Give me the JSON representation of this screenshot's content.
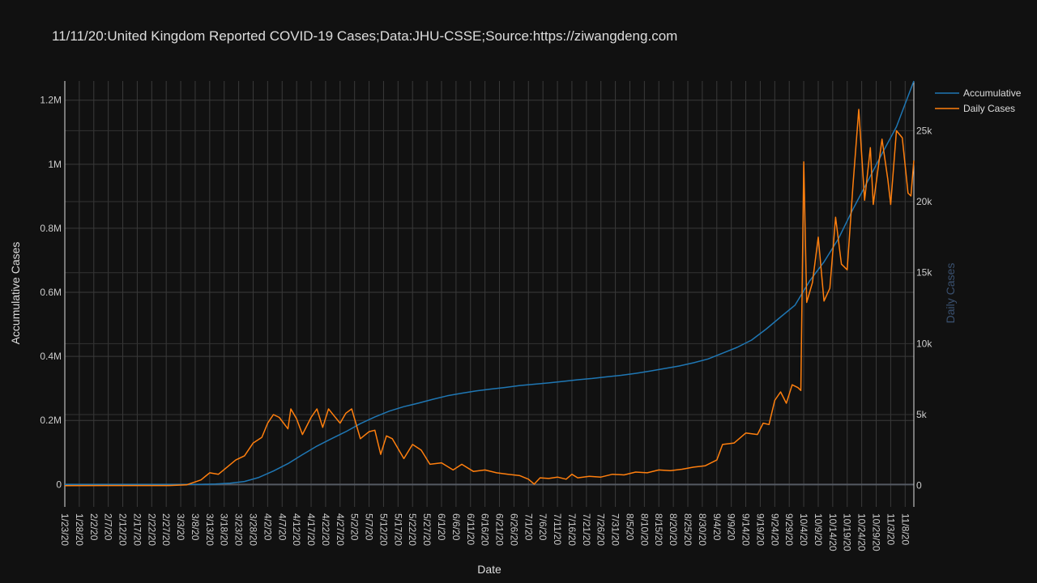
{
  "chart_data": {
    "type": "line",
    "title": "11/11/20:United Kingdom Reported COVID-19 Cases;Data:JHU-CSSE;Source:https://ziwangdeng.com",
    "xlabel": "Date",
    "ylabel_left": "Accumulative Cases",
    "ylabel_right": "Daily Cases",
    "x_range": [
      "1/23/20",
      "11/11/20"
    ],
    "x_tick_labels": [
      "1/23/20",
      "1/28/20",
      "2/2/20",
      "2/7/20",
      "2/12/20",
      "2/17/20",
      "2/22/20",
      "2/27/20",
      "3/3/20",
      "3/8/20",
      "3/13/20",
      "3/18/20",
      "3/23/20",
      "3/28/20",
      "4/2/20",
      "4/7/20",
      "4/12/20",
      "4/17/20",
      "4/22/20",
      "4/27/20",
      "5/2/20",
      "5/7/20",
      "5/12/20",
      "5/17/20",
      "5/22/20",
      "5/27/20",
      "6/1/20",
      "6/6/20",
      "6/11/20",
      "6/16/20",
      "6/21/20",
      "6/26/20",
      "7/1/20",
      "7/6/20",
      "7/11/20",
      "7/16/20",
      "7/21/20",
      "7/26/20",
      "7/31/20",
      "8/5/20",
      "8/10/20",
      "8/15/20",
      "8/20/20",
      "8/25/20",
      "8/30/20",
      "9/4/20",
      "9/9/20",
      "9/14/20",
      "9/19/20",
      "9/24/20",
      "9/29/20",
      "10/4/20",
      "10/9/20",
      "10/14/20",
      "10/19/20",
      "10/24/20",
      "10/29/20",
      "11/3/20",
      "11/8/20"
    ],
    "y_left": {
      "range": [
        -70000,
        1260000
      ],
      "tick_values": [
        0,
        200000,
        400000,
        600000,
        800000,
        1000000,
        1200000
      ],
      "tick_labels": [
        "0",
        "0.2M",
        "0.4M",
        "0.6M",
        "0.8M",
        "1M",
        "1.2M"
      ]
    },
    "y_right": {
      "range": [
        -1500,
        28500
      ],
      "tick_values": [
        0,
        5000,
        10000,
        15000,
        20000,
        25000
      ],
      "tick_labels": [
        "0",
        "5k",
        "10k",
        "15k",
        "20k",
        "25k"
      ]
    },
    "grid": true,
    "legend": "top-right",
    "series": [
      {
        "name": "Accumulative",
        "axis": "left",
        "color": "#1f77b4",
        "points": [
          [
            "1/23/20",
            0
          ],
          [
            "3/1/20",
            40
          ],
          [
            "3/10/20",
            400
          ],
          [
            "3/15/20",
            1400
          ],
          [
            "3/20/20",
            4000
          ],
          [
            "3/25/20",
            9500
          ],
          [
            "3/30/20",
            22000
          ],
          [
            "4/4/20",
            42000
          ],
          [
            "4/9/20",
            65000
          ],
          [
            "4/14/20",
            93000
          ],
          [
            "4/19/20",
            120000
          ],
          [
            "4/24/20",
            143000
          ],
          [
            "4/29/20",
            165000
          ],
          [
            "5/4/20",
            190000
          ],
          [
            "5/9/20",
            211000
          ],
          [
            "5/14/20",
            229000
          ],
          [
            "5/19/20",
            243000
          ],
          [
            "5/24/20",
            254000
          ],
          [
            "5/29/20",
            266000
          ],
          [
            "6/3/20",
            277000
          ],
          [
            "6/8/20",
            285000
          ],
          [
            "6/13/20",
            292000
          ],
          [
            "6/18/20",
            298000
          ],
          [
            "6/23/20",
            303000
          ],
          [
            "6/28/20",
            309000
          ],
          [
            "7/3/20",
            313000
          ],
          [
            "7/8/20",
            317000
          ],
          [
            "7/13/20",
            322000
          ],
          [
            "7/18/20",
            327000
          ],
          [
            "7/23/20",
            331000
          ],
          [
            "7/28/20",
            336000
          ],
          [
            "8/2/20",
            341000
          ],
          [
            "8/7/20",
            347000
          ],
          [
            "8/12/20",
            354000
          ],
          [
            "8/17/20",
            362000
          ],
          [
            "8/22/20",
            370000
          ],
          [
            "8/27/20",
            380000
          ],
          [
            "9/1/20",
            392000
          ],
          [
            "9/6/20",
            410000
          ],
          [
            "9/11/20",
            428000
          ],
          [
            "9/16/20",
            451000
          ],
          [
            "9/21/20",
            485000
          ],
          [
            "9/26/20",
            523000
          ],
          [
            "10/1/20",
            560000
          ],
          [
            "10/6/20",
            635000
          ],
          [
            "10/11/20",
            695000
          ],
          [
            "10/16/20",
            768000
          ],
          [
            "10/21/20",
            860000
          ],
          [
            "10/26/20",
            946000
          ],
          [
            "10/31/20",
            1033000
          ],
          [
            "11/5/20",
            1117000
          ],
          [
            "11/11/20",
            1260000
          ]
        ]
      },
      {
        "name": "Daily Cases",
        "axis": "right",
        "color": "#ff7f0e",
        "points": [
          [
            "1/23/20",
            0
          ],
          [
            "2/28/20",
            5
          ],
          [
            "3/5/20",
            50
          ],
          [
            "3/10/20",
            400
          ],
          [
            "3/13/20",
            900
          ],
          [
            "3/16/20",
            800
          ],
          [
            "3/19/20",
            1300
          ],
          [
            "3/22/20",
            1800
          ],
          [
            "3/25/20",
            2100
          ],
          [
            "3/28/20",
            3000
          ],
          [
            "3/31/20",
            3400
          ],
          [
            "4/2/20",
            4400
          ],
          [
            "4/4/20",
            5000
          ],
          [
            "4/6/20",
            4800
          ],
          [
            "4/9/20",
            4000
          ],
          [
            "4/10/20",
            5400
          ],
          [
            "4/12/20",
            4700
          ],
          [
            "4/14/20",
            3600
          ],
          [
            "4/17/20",
            4800
          ],
          [
            "4/19/20",
            5400
          ],
          [
            "4/21/20",
            4100
          ],
          [
            "4/23/20",
            5400
          ],
          [
            "4/25/20",
            4900
          ],
          [
            "4/27/20",
            4400
          ],
          [
            "4/29/20",
            5100
          ],
          [
            "5/1/20",
            5400
          ],
          [
            "5/4/20",
            3300
          ],
          [
            "5/7/20",
            3800
          ],
          [
            "5/9/20",
            3900
          ],
          [
            "5/11/20",
            2200
          ],
          [
            "5/13/20",
            3500
          ],
          [
            "5/15/20",
            3300
          ],
          [
            "5/19/20",
            1900
          ],
          [
            "5/22/20",
            2900
          ],
          [
            "5/25/20",
            2500
          ],
          [
            "5/28/20",
            1500
          ],
          [
            "6/1/20",
            1600
          ],
          [
            "6/5/20",
            1100
          ],
          [
            "6/8/20",
            1500
          ],
          [
            "6/12/20",
            1000
          ],
          [
            "6/16/20",
            1100
          ],
          [
            "6/20/20",
            900
          ],
          [
            "6/24/20",
            800
          ],
          [
            "6/28/20",
            700
          ],
          [
            "7/1/20",
            450
          ],
          [
            "7/3/20",
            100
          ],
          [
            "7/5/20",
            550
          ],
          [
            "7/8/20",
            500
          ],
          [
            "7/11/20",
            600
          ],
          [
            "7/14/20",
            450
          ],
          [
            "7/16/20",
            800
          ],
          [
            "7/18/20",
            550
          ],
          [
            "7/22/20",
            650
          ],
          [
            "7/26/20",
            600
          ],
          [
            "7/30/20",
            800
          ],
          [
            "8/3/20",
            750
          ],
          [
            "8/7/20",
            950
          ],
          [
            "8/11/20",
            900
          ],
          [
            "8/15/20",
            1100
          ],
          [
            "8/19/20",
            1050
          ],
          [
            "8/23/20",
            1150
          ],
          [
            "8/27/20",
            1300
          ],
          [
            "8/31/20",
            1400
          ],
          [
            "9/4/20",
            1800
          ],
          [
            "9/6/20",
            2900
          ],
          [
            "9/10/20",
            3000
          ],
          [
            "9/14/20",
            3700
          ],
          [
            "9/18/20",
            3600
          ],
          [
            "9/20/20",
            4400
          ],
          [
            "9/22/20",
            4300
          ],
          [
            "9/24/20",
            6000
          ],
          [
            "9/26/20",
            6600
          ],
          [
            "9/28/20",
            5800
          ],
          [
            "9/30/20",
            7100
          ],
          [
            "10/2/20",
            6900
          ],
          [
            "10/3/20",
            6700
          ],
          [
            "10/4/20",
            22800
          ],
          [
            "10/5/20",
            12900
          ],
          [
            "10/7/20",
            14300
          ],
          [
            "10/9/20",
            17500
          ],
          [
            "10/11/20",
            13000
          ],
          [
            "10/13/20",
            13900
          ],
          [
            "10/15/20",
            18900
          ],
          [
            "10/17/20",
            15600
          ],
          [
            "10/19/20",
            15200
          ],
          [
            "10/21/20",
            21200
          ],
          [
            "10/23/20",
            26500
          ],
          [
            "10/25/20",
            20100
          ],
          [
            "10/27/20",
            23800
          ],
          [
            "10/28/20",
            19800
          ],
          [
            "10/31/20",
            24400
          ],
          [
            "11/2/20",
            21600
          ],
          [
            "11/3/20",
            19800
          ],
          [
            "11/5/20",
            25000
          ],
          [
            "11/7/20",
            24500
          ],
          [
            "11/9/20",
            20600
          ],
          [
            "11/10/20",
            20400
          ],
          [
            "11/11/20",
            22900
          ]
        ]
      }
    ]
  }
}
